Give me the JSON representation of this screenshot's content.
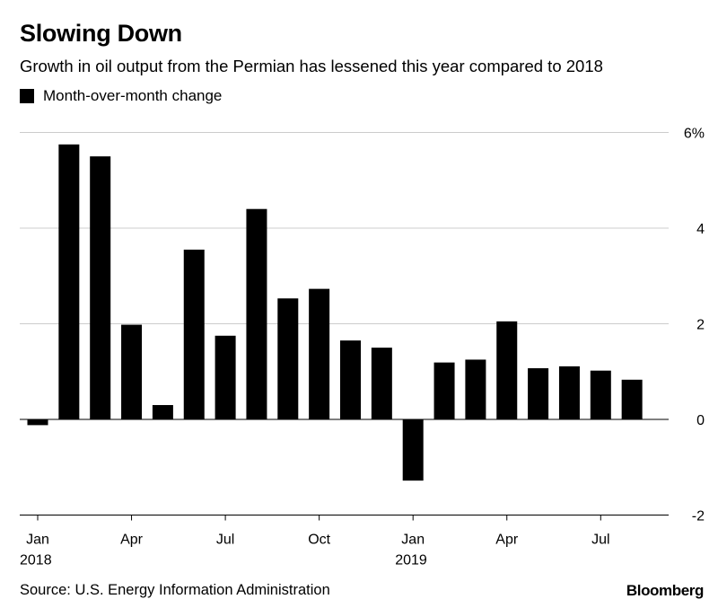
{
  "header": {
    "title": "Slowing Down",
    "subtitle": "Growth in oil output from the Permian has lessened this year compared to 2018"
  },
  "legend": {
    "label": "Month-over-month change"
  },
  "footer": {
    "source": "Source: U.S. Energy Information Administration",
    "brand": "Bloomberg"
  },
  "colors": {
    "bar": "#000000",
    "gridline": "#cccccc",
    "axis": "#000000"
  },
  "chart_data": {
    "type": "bar",
    "title": "Slowing Down",
    "subtitle": "Growth in oil output from the Permian has lessened this year compared to 2018",
    "xlabel": "",
    "ylabel": "",
    "ylim": [
      -2,
      6
    ],
    "yticks": [
      -2,
      0,
      2,
      4,
      6
    ],
    "ytick_labels": [
      "-2",
      "0",
      "2",
      "4",
      "6%"
    ],
    "y_axis_side": "right",
    "grid": true,
    "legend_position": "top-left",
    "categories": [
      "2018-01",
      "2018-02",
      "2018-03",
      "2018-04",
      "2018-05",
      "2018-06",
      "2018-07",
      "2018-08",
      "2018-09",
      "2018-10",
      "2018-11",
      "2018-12",
      "2019-01",
      "2019-02",
      "2019-03",
      "2019-04",
      "2019-05",
      "2019-06",
      "2019-07",
      "2019-08"
    ],
    "xtick_labels": [
      {
        "category": "2018-01",
        "label": "Jan",
        "year": "2018"
      },
      {
        "category": "2018-04",
        "label": "Apr",
        "year": ""
      },
      {
        "category": "2018-07",
        "label": "Jul",
        "year": ""
      },
      {
        "category": "2018-10",
        "label": "Oct",
        "year": ""
      },
      {
        "category": "2019-01",
        "label": "Jan",
        "year": "2019"
      },
      {
        "category": "2019-04",
        "label": "Apr",
        "year": ""
      },
      {
        "category": "2019-07",
        "label": "Jul",
        "year": ""
      }
    ],
    "series": [
      {
        "name": "Month-over-month change",
        "values": [
          -0.12,
          5.75,
          5.5,
          1.98,
          0.3,
          3.55,
          1.75,
          4.4,
          2.53,
          2.73,
          1.65,
          1.5,
          -1.28,
          1.19,
          1.25,
          2.05,
          1.07,
          1.11,
          1.02,
          0.83
        ]
      }
    ]
  }
}
